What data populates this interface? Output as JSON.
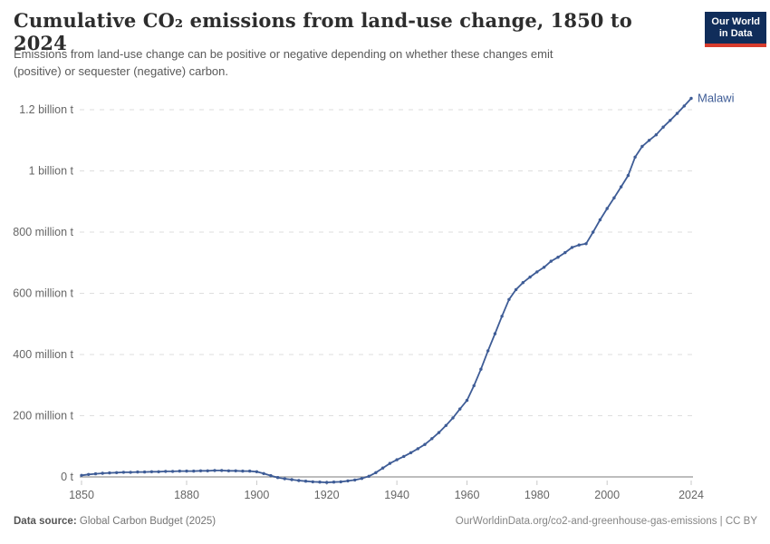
{
  "header": {
    "title": "Cumulative CO₂ emissions from land-use change, 1850 to 2024",
    "subtitle_line1": "Emissions from land-use change can be positive or negative depending on whether these changes emit",
    "subtitle_line2": "(positive) or sequester (negative) carbon.",
    "logo": {
      "line1": "Our World",
      "line2": "in Data",
      "bg_color": "#102d5a",
      "accent_color": "#d73c2d"
    }
  },
  "footer": {
    "source_label": "Data source:",
    "source_text": "Global Carbon Budget (2025)",
    "citation": "OurWorldinData.org/co2-and-greenhouse-gas-emissions | CC BY"
  },
  "chart_data": {
    "type": "line",
    "title": "Cumulative CO₂ emissions from land-use change, 1850 to 2024",
    "unit": "tonnes of CO₂",
    "legend_position": "end-of-line-label",
    "grid": "horizontal-dashed",
    "x_axis": {
      "range": [
        1850,
        2024
      ],
      "ticks": [
        1850,
        1880,
        1900,
        1920,
        1940,
        1960,
        1980,
        2000,
        2024
      ]
    },
    "y_axis": {
      "unit_note": "values in million tonnes",
      "range_million_t": [
        -25,
        1260
      ],
      "ticks": [
        {
          "value": 0,
          "label": "0 t"
        },
        {
          "value": 200,
          "label": "200 million t"
        },
        {
          "value": 400,
          "label": "400 million t"
        },
        {
          "value": 600,
          "label": "600 million t"
        },
        {
          "value": 800,
          "label": "800 million t"
        },
        {
          "value": 1000,
          "label": "1 billion t"
        },
        {
          "value": 1200,
          "label": "1.2 billion t"
        }
      ]
    },
    "x": [
      1850,
      1852,
      1854,
      1856,
      1858,
      1860,
      1862,
      1864,
      1866,
      1868,
      1870,
      1872,
      1874,
      1876,
      1878,
      1880,
      1882,
      1884,
      1886,
      1888,
      1890,
      1892,
      1894,
      1896,
      1898,
      1900,
      1902,
      1904,
      1906,
      1908,
      1910,
      1912,
      1914,
      1916,
      1918,
      1920,
      1922,
      1924,
      1926,
      1928,
      1930,
      1932,
      1934,
      1936,
      1938,
      1940,
      1942,
      1944,
      1946,
      1948,
      1950,
      1952,
      1954,
      1956,
      1958,
      1960,
      1962,
      1964,
      1966,
      1968,
      1970,
      1972,
      1974,
      1976,
      1978,
      1980,
      1982,
      1984,
      1986,
      1988,
      1990,
      1992,
      1994,
      1996,
      1998,
      2000,
      2002,
      2004,
      2006,
      2008,
      2010,
      2012,
      2014,
      2016,
      2018,
      2020,
      2022,
      2024
    ],
    "series": [
      {
        "name": "Malawi",
        "color": "#3e5c96",
        "values_million_t": [
          5,
          8,
          10,
          12,
          13,
          14,
          15,
          15,
          16,
          16,
          17,
          17,
          18,
          18,
          19,
          19,
          19,
          20,
          20,
          21,
          21,
          20,
          20,
          19,
          19,
          17,
          11,
          4,
          -2,
          -6,
          -9,
          -12,
          -14,
          -16,
          -17,
          -18,
          -17,
          -16,
          -13,
          -10,
          -5,
          2,
          14,
          29,
          44,
          56,
          67,
          79,
          92,
          106,
          125,
          145,
          168,
          193,
          222,
          250,
          298,
          352,
          412,
          468,
          525,
          580,
          612,
          635,
          653,
          670,
          685,
          705,
          718,
          733,
          750,
          758,
          762,
          800,
          840,
          877,
          912,
          948,
          985,
          1045,
          1080,
          1100,
          1118,
          1143,
          1165,
          1188,
          1212,
          1237
        ]
      }
    ]
  }
}
